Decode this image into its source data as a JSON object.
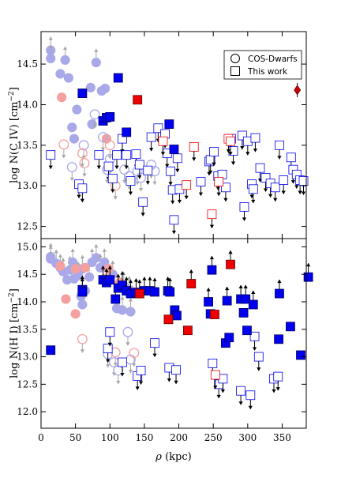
{
  "chart_data": [
    {
      "panel": "top",
      "type": "scatter",
      "ylabel": "log N(C IV) [cm$^{-2}$]",
      "ylabel_text": "log N(C IV) [cm",
      "ylabel_sup": "−2",
      "ylabel_end": "]",
      "xlim": [
        0,
        385
      ],
      "ylim": [
        12.35,
        14.9
      ],
      "yticks": [
        12.5,
        13.0,
        13.5,
        14.0,
        14.5
      ],
      "ytick_labels": [
        "12.5",
        "13.0",
        "13.5",
        "14.0",
        "14.5"
      ],
      "legend": {
        "placement": "top-right",
        "entries": [
          {
            "marker": "circle",
            "label": "COS-Dwarfs"
          },
          {
            "marker": "square",
            "label": "This work"
          }
        ]
      },
      "series": [
        {
          "name": "COS-Dwarfs",
          "marker": "circle",
          "filled_detections": [
            [
              14,
              14.67,
              1
            ],
            [
              14,
              14.57,
              1
            ],
            [
              28,
              14.38,
              0
            ],
            [
              35,
              14.55,
              1
            ],
            [
              40,
              14.33,
              0
            ],
            [
              45,
              13.72,
              0
            ],
            [
              52,
              13.94,
              0
            ],
            [
              48,
              13.58,
              0
            ],
            [
              72,
              14.21,
              0
            ],
            [
              74,
              13.76,
              0
            ],
            [
              80,
              14.52,
              1
            ],
            [
              88,
              14.17,
              0
            ],
            [
              93,
              14.2,
              0
            ]
          ],
          "red_filled": [
            [
              30,
              14.09
            ],
            [
              95,
              13.58
            ]
          ],
          "open_blue": [
            [
              45,
              13.23
            ],
            [
              62,
              13.5
            ],
            [
              78,
              13.88
            ],
            [
              90,
              13.6
            ],
            [
              100,
              13.33
            ],
            [
              96,
              13.2
            ],
            [
              121,
              13.2
            ],
            [
              128,
              13.12
            ],
            [
              140,
              13.18
            ],
            [
              145,
              13.1
            ],
            [
              160,
              13.26
            ],
            [
              165,
              13.18
            ]
          ],
          "open_red": [
            [
              33,
              13.51
            ],
            [
              60,
              13.4
            ],
            [
              63,
              13.28
            ],
            [
              100,
              13.5
            ],
            [
              108,
              13.0
            ]
          ]
        },
        {
          "name": "This work",
          "marker": "square",
          "filled_blue": [
            [
              60,
              14.14
            ],
            [
              90,
              13.8
            ],
            [
              95,
              13.84
            ],
            [
              100,
              13.85
            ],
            [
              112,
              14.33
            ],
            [
              124,
              13.66
            ],
            [
              186,
              13.76
            ],
            [
              193,
              13.45
            ]
          ],
          "filled_red": [
            [
              140,
              14.06
            ]
          ],
          "open_blue_upper_limits": [
            [
              14,
              13.38
            ],
            [
              55,
              13.02
            ],
            [
              60,
              12.97
            ],
            [
              84,
              13.38
            ],
            [
              98,
              13.24
            ],
            [
              104,
              13.09
            ],
            [
              110,
              13.38
            ],
            [
              118,
              13.58
            ],
            [
              124,
              13.38
            ],
            [
              130,
              13.06
            ],
            [
              138,
              13.39
            ],
            [
              143,
              13.26
            ],
            [
              148,
              12.8
            ],
            [
              155,
              13.19
            ],
            [
              160,
              13.6
            ],
            [
              170,
              13.71
            ],
            [
              180,
              13.64
            ],
            [
              183,
              13.4
            ],
            [
              188,
              13.18
            ],
            [
              191,
              12.95
            ],
            [
              193,
              12.58
            ],
            [
              198,
              13.34
            ],
            [
              201,
              12.96
            ],
            [
              232,
              13.05
            ],
            [
              244,
              13.3
            ],
            [
              246,
              13.32
            ],
            [
              251,
              13.42
            ],
            [
              257,
              13.12
            ],
            [
              263,
              13.14
            ],
            [
              268,
              12.98
            ],
            [
              276,
              13.58
            ],
            [
              279,
              13.43
            ],
            [
              292,
              13.62
            ],
            [
              295,
              12.74
            ],
            [
              300,
              13.55
            ],
            [
              306,
              13.02
            ],
            [
              308,
              12.96
            ],
            [
              311,
              13.59
            ],
            [
              318,
              13.22
            ],
            [
              326,
              13.1
            ],
            [
              333,
              13.03
            ],
            [
              340,
              12.98
            ],
            [
              346,
              13.5
            ],
            [
              352,
              13.07
            ],
            [
              363,
              13.35
            ],
            [
              366,
              13.2
            ],
            [
              371,
              13.14
            ],
            [
              376,
              13.07
            ],
            [
              381,
              13.06
            ]
          ],
          "open_red_upper_limits": [
            [
              177,
              13.55
            ],
            [
              211,
              13.01
            ],
            [
              222,
              13.48
            ],
            [
              248,
              12.65
            ],
            [
              258,
              13.05
            ],
            [
              272,
              13.58
            ],
            [
              275,
              13.55
            ]
          ]
        },
        {
          "name": "",
          "marker": "diamond",
          "points": [
            [
              372,
              14.18
            ]
          ]
        }
      ]
    },
    {
      "panel": "bottom",
      "type": "scatter",
      "xlabel": "ρ (kpc)",
      "xlabel_main": "ρ",
      "xlabel_unit": " (kpc)",
      "ylabel": "log N(H I) [cm$^{-2}$]",
      "ylabel_text": "log N(H I) [cm",
      "ylabel_sup": "−2",
      "ylabel_end": "]",
      "xlim": [
        0,
        385
      ],
      "ylim": [
        11.7,
        15.15
      ],
      "xticks": [
        0,
        50,
        100,
        150,
        200,
        250,
        300,
        350
      ],
      "xtick_labels": [
        "0",
        "50",
        "100",
        "150",
        "200",
        "250",
        "300",
        "350"
      ],
      "yticks": [
        12.0,
        12.5,
        13.0,
        13.5,
        14.0,
        14.5,
        15.0
      ],
      "ytick_labels": [
        "12.0",
        "12.5",
        "13.0",
        "13.5",
        "14.0",
        "14.5",
        "15.0"
      ],
      "series": [
        {
          "name": "COS-Dwarfs",
          "marker": "circle",
          "filled_blue_lower_limits": [
            [
              14,
              14.82
            ],
            [
              14,
              14.78
            ],
            [
              22,
              14.7
            ],
            [
              28,
              14.62
            ],
            [
              32,
              14.55
            ],
            [
              38,
              14.4
            ],
            [
              42,
              14.58
            ],
            [
              46,
              14.72
            ],
            [
              48,
              14.42
            ],
            [
              54,
              14.48
            ],
            [
              60,
              14.6
            ],
            [
              70,
              14.45
            ],
            [
              74,
              14.72
            ],
            [
              80,
              14.8
            ],
            [
              86,
              14.62
            ],
            [
              92,
              14.72
            ],
            [
              104,
              14.5
            ],
            [
              120,
              14.3
            ],
            [
              128,
              14.22
            ],
            [
              110,
              13.88
            ],
            [
              118,
              13.85
            ],
            [
              130,
              13.82
            ]
          ],
          "filled_blue": [
            [
              58,
              14.1
            ],
            [
              60,
              13.95
            ],
            [
              64,
              14.2
            ]
          ],
          "red_filled": [
            [
              28,
              14.65
            ],
            [
              36,
              14.05
            ],
            [
              50,
              13.78
            ],
            [
              50,
              14.6
            ],
            [
              64,
              14.62
            ],
            [
              92,
              14.42
            ],
            [
              98,
              14.6
            ],
            [
              114,
              14.35
            ],
            [
              132,
              14.18
            ]
          ],
          "open_blue": [
            [
              97,
              13.05
            ],
            [
              106,
              12.9
            ],
            [
              112,
              12.75
            ],
            [
              130,
              12.95
            ],
            [
              126,
              13.45
            ]
          ],
          "open_red": [
            [
              60,
              13.32
            ],
            [
              108,
              13.08
            ],
            [
              135,
              13.07
            ]
          ]
        },
        {
          "name": "This work",
          "marker": "square",
          "filled_blue": [
            [
              14,
              13.12
            ],
            [
              60,
              14.22
            ],
            [
              60,
              14.18
            ],
            [
              90,
              14.4
            ],
            [
              95,
              14.35
            ],
            [
              100,
              14.4
            ],
            [
              108,
              14.05
            ],
            [
              112,
              14.25
            ],
            [
              118,
              14.3
            ],
            [
              124,
              14.2
            ],
            [
              130,
              14.15
            ],
            [
              138,
              14.17
            ],
            [
              150,
              14.2
            ],
            [
              158,
              14.2
            ],
            [
              165,
              14.18
            ],
            [
              184,
              14.2
            ],
            [
              187,
              14.18
            ],
            [
              194,
              13.85
            ],
            [
              197,
              13.75
            ],
            [
              243,
              14.0
            ],
            [
              246,
              13.78
            ],
            [
              248,
              14.58
            ],
            [
              270,
              14.02
            ],
            [
              268,
              13.25
            ],
            [
              273,
              13.35
            ],
            [
              290,
              14.05
            ],
            [
              294,
              13.8
            ],
            [
              297,
              14.05
            ],
            [
              299,
              13.48
            ],
            [
              308,
              13.95
            ],
            [
              345,
              13.32
            ],
            [
              362,
              13.55
            ],
            [
              377,
              13.03
            ],
            [
              388,
              14.45
            ],
            [
              346,
              14.15
            ]
          ],
          "filled_red": [
            [
              143,
              14.15
            ],
            [
              185,
              13.68
            ],
            [
              213,
              13.48
            ],
            [
              218,
              14.33
            ],
            [
              252,
              13.77
            ],
            [
              275,
              14.68
            ]
          ],
          "open_blue_upper_limits": [
            [
              97,
              13.15
            ],
            [
              100,
              13.45
            ],
            [
              118,
              12.9
            ],
            [
              140,
              12.65
            ],
            [
              145,
              12.75
            ],
            [
              165,
              13.25
            ],
            [
              186,
              12.8
            ],
            [
              196,
              12.76
            ],
            [
              249,
              12.88
            ],
            [
              258,
              12.5
            ],
            [
              264,
              12.6
            ],
            [
              290,
              12.38
            ],
            [
              304,
              12.3
            ],
            [
              310,
              13.37
            ],
            [
              316,
              13.0
            ],
            [
              338,
              12.6
            ],
            [
              344,
              12.64
            ]
          ],
          "open_red_upper_limits": [
            [
              253,
              12.67
            ]
          ]
        }
      ]
    }
  ]
}
